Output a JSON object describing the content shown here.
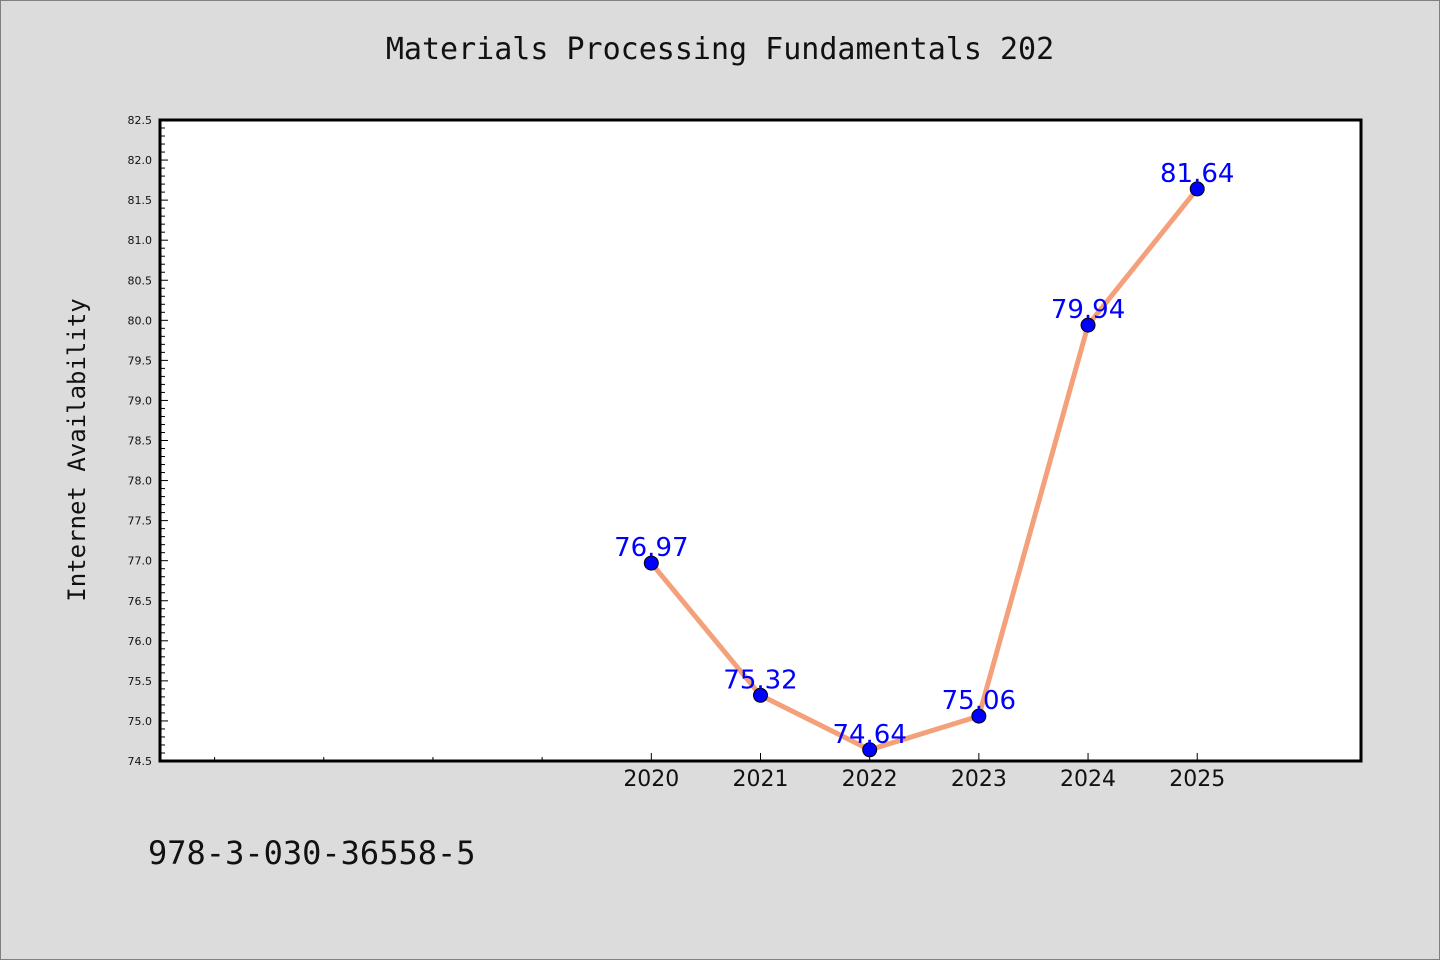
{
  "chart_data": {
    "type": "line",
    "title": "Materials Processing Fundamentals 202",
    "xlabel": "",
    "ylabel": "Internet Availability",
    "x": [
      "2020",
      "2021",
      "2022",
      "2023",
      "2024",
      "2025"
    ],
    "series": [
      {
        "values": [
          76.97,
          75.32,
          74.64,
          75.06,
          79.94,
          81.64
        ]
      }
    ],
    "data_labels": [
      "76.97",
      "75.32",
      "74.64",
      "75.06",
      "79.94",
      "81.64"
    ],
    "ylim": [
      74.5,
      82.5
    ],
    "xlim": [
      2015.5,
      2026.5
    ],
    "y_ticks": [
      "74.5",
      "75.0",
      "75.5",
      "76.0",
      "76.5",
      "77.0",
      "77.5",
      "78.0",
      "78.5",
      "79.0",
      "79.5",
      "80.0",
      "80.5",
      "81.0",
      "81.5",
      "82.0",
      "82.5"
    ],
    "grid": false,
    "legend": "none",
    "colors": {
      "line": "#f4a07a",
      "marker": "#0000ff",
      "label": "#0000ff",
      "background": "#dcdcdc",
      "plot_background": "#ffffff"
    }
  },
  "footer": {
    "code": "978-3-030-36558-5"
  }
}
